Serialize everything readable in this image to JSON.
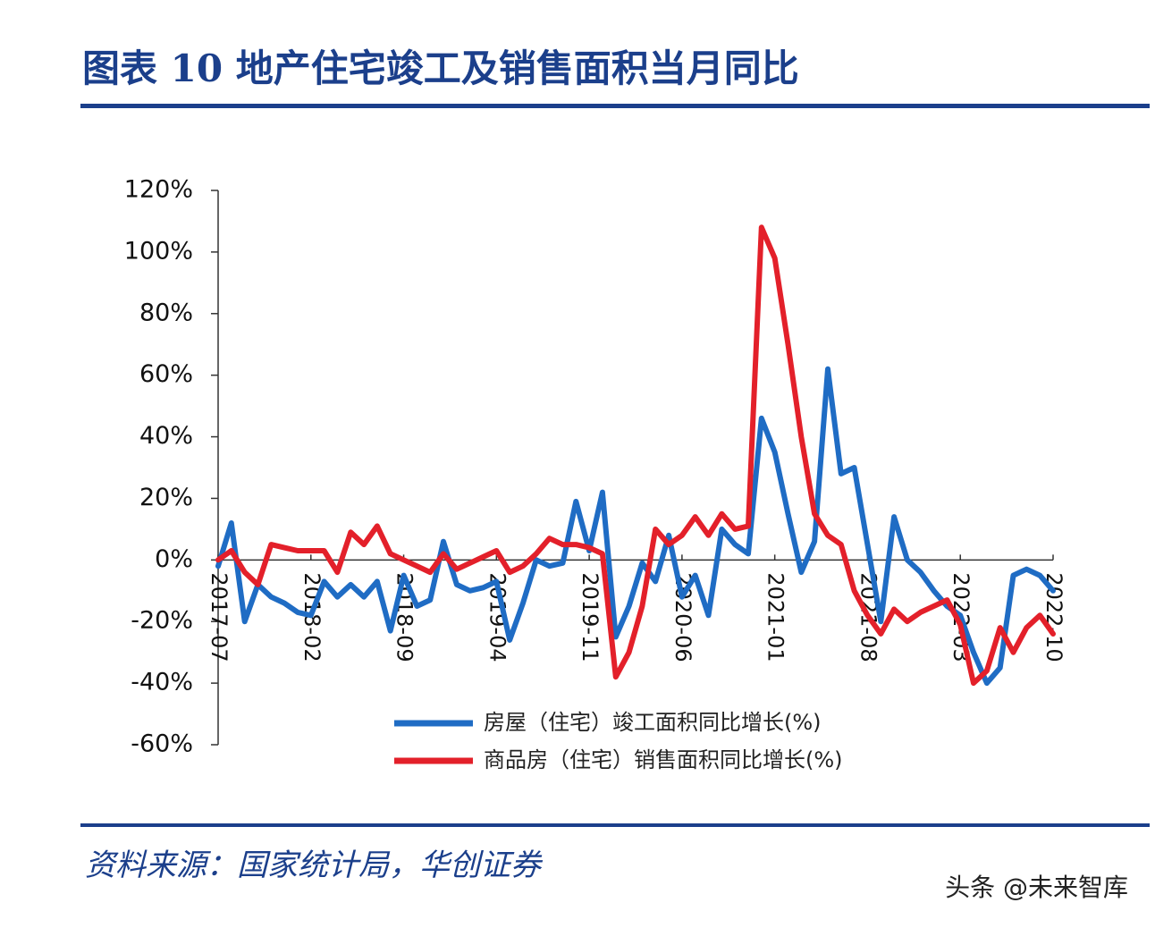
{
  "header": {
    "title": "图表 10   地产住宅竣工及销售面积当月同比"
  },
  "chart_data": {
    "type": "line",
    "categories": [
      "2017-07",
      null,
      null,
      null,
      null,
      null,
      null,
      "2018-02",
      null,
      null,
      null,
      null,
      null,
      null,
      "2018-09",
      null,
      null,
      null,
      null,
      null,
      null,
      "2019-04",
      null,
      null,
      null,
      null,
      null,
      null,
      "2019-11",
      null,
      null,
      null,
      null,
      null,
      null,
      "2020-06",
      null,
      null,
      null,
      null,
      null,
      null,
      "2021-01",
      null,
      null,
      null,
      null,
      null,
      null,
      "2021-08",
      null,
      null,
      null,
      null,
      null,
      null,
      "2022-03",
      null,
      null,
      null,
      null,
      null,
      null,
      "2022-10"
    ],
    "series": [
      {
        "name": "房屋（住宅）竣工面积同比增长(%)",
        "color": "#1f6cc4",
        "values": [
          -2,
          12,
          -20,
          -8,
          -12,
          -14,
          -17,
          -18,
          -7,
          -12,
          -8,
          -12,
          -7,
          -23,
          -5,
          -15,
          -13,
          6,
          -8,
          -10,
          -9,
          -7,
          -26,
          -14,
          0,
          -2,
          -1,
          19,
          3,
          22,
          -25,
          -15,
          -1,
          -7,
          8,
          -12,
          -5,
          -18,
          10,
          5,
          2,
          46,
          35,
          15,
          -4,
          6,
          62,
          28,
          30,
          5,
          -20,
          14,
          0,
          -4,
          -10,
          -15,
          -18,
          -30,
          -40,
          -35,
          -5,
          -3,
          -5,
          -10
        ]
      },
      {
        "name": "商品房（住宅）销售面积同比增长(%)",
        "color": "#e3202a",
        "values": [
          0,
          3,
          -4,
          -8,
          5,
          4,
          3,
          3,
          3,
          -4,
          9,
          5,
          11,
          2,
          0,
          -2,
          -4,
          2,
          -3,
          -1,
          1,
          3,
          -4,
          -2,
          2,
          7,
          5,
          5,
          4,
          2,
          -38,
          -30,
          -15,
          10,
          5,
          8,
          14,
          8,
          15,
          10,
          11,
          108,
          98,
          70,
          40,
          15,
          8,
          5,
          -10,
          -18,
          -24,
          -16,
          -20,
          -17,
          -15,
          -13,
          -21,
          -40,
          -36,
          -22,
          -30,
          -22,
          -18,
          -24
        ]
      }
    ],
    "ylim": [
      -60,
      120
    ],
    "yticks": [
      {
        "value": -60,
        "label": "-60%"
      },
      {
        "value": -40,
        "label": "-40%"
      },
      {
        "value": -20,
        "label": "-20%"
      },
      {
        "value": 0,
        "label": "0%"
      },
      {
        "value": 20,
        "label": "20%"
      },
      {
        "value": 40,
        "label": "40%"
      },
      {
        "value": 60,
        "label": "60%"
      },
      {
        "value": 80,
        "label": "80%"
      },
      {
        "value": 100,
        "label": "100%"
      },
      {
        "value": 120,
        "label": "120%"
      }
    ],
    "legend": "lower center"
  },
  "source": "资料来源：国家统计局，华创证券",
  "watermark": "头条 @未来智库"
}
